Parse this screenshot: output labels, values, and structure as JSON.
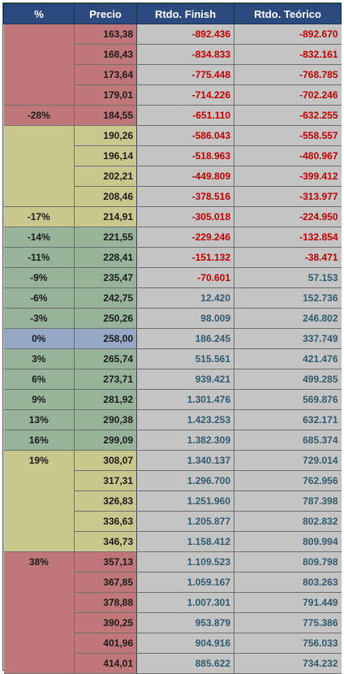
{
  "headers": [
    "%",
    "Precio",
    "Rtdo. Finish",
    "Rtdo. Teórico"
  ],
  "rows": [
    {
      "pct": "",
      "precio": "163,38",
      "finish": "-892.436",
      "teorico": "-892.670",
      "band": "red"
    },
    {
      "pct": "",
      "precio": "168,43",
      "finish": "-834.833",
      "teorico": "-832.161",
      "band": "red"
    },
    {
      "pct": "",
      "precio": "173,64",
      "finish": "-775.448",
      "teorico": "-768.785",
      "band": "red"
    },
    {
      "pct": "",
      "precio": "179,01",
      "finish": "-714.226",
      "teorico": "-702.246",
      "band": "red"
    },
    {
      "pct": "-28%",
      "precio": "184,55",
      "finish": "-651.110",
      "teorico": "-632.255",
      "band": "red"
    },
    {
      "pct": "",
      "precio": "190,26",
      "finish": "-586.043",
      "teorico": "-558.557",
      "band": "olive"
    },
    {
      "pct": "",
      "precio": "196,14",
      "finish": "-518.963",
      "teorico": "-480.967",
      "band": "olive"
    },
    {
      "pct": "",
      "precio": "202,21",
      "finish": "-449.809",
      "teorico": "-399.412",
      "band": "olive"
    },
    {
      "pct": "",
      "precio": "208,46",
      "finish": "-378.516",
      "teorico": "-313.977",
      "band": "olive"
    },
    {
      "pct": "-17%",
      "precio": "214,91",
      "finish": "-305.018",
      "teorico": "-224.950",
      "band": "olive"
    },
    {
      "pct": "-14%",
      "precio": "221,55",
      "finish": "-229.246",
      "teorico": "-132.854",
      "band": "green"
    },
    {
      "pct": "-11%",
      "precio": "228,41",
      "finish": "-151.132",
      "teorico": "-38.471",
      "band": "green"
    },
    {
      "pct": "-9%",
      "precio": "235,47",
      "finish": "-70.601",
      "teorico": "57.153",
      "band": "green"
    },
    {
      "pct": "-6%",
      "precio": "242,75",
      "finish": "12.420",
      "teorico": "152.736",
      "band": "green"
    },
    {
      "pct": "-3%",
      "precio": "250,26",
      "finish": "98.009",
      "teorico": "246.802",
      "band": "green"
    },
    {
      "pct": "0%",
      "precio": "258,00",
      "finish": "186.245",
      "teorico": "337.749",
      "band": "blue"
    },
    {
      "pct": "3%",
      "precio": "265,74",
      "finish": "515.561",
      "teorico": "421.476",
      "band": "green"
    },
    {
      "pct": "6%",
      "precio": "273,71",
      "finish": "939.421",
      "teorico": "499.285",
      "band": "green"
    },
    {
      "pct": "9%",
      "precio": "281,92",
      "finish": "1.301.476",
      "teorico": "569.876",
      "band": "green"
    },
    {
      "pct": "13%",
      "precio": "290,38",
      "finish": "1.423.253",
      "teorico": "632.171",
      "band": "green"
    },
    {
      "pct": "16%",
      "precio": "299,09",
      "finish": "1.382.309",
      "teorico": "685.374",
      "band": "green"
    },
    {
      "pct": "19%",
      "precio": "308,07",
      "finish": "1.340.137",
      "teorico": "729.014",
      "band": "olive"
    },
    {
      "pct": "",
      "precio": "317,31",
      "finish": "1.296.700",
      "teorico": "762.956",
      "band": "olive"
    },
    {
      "pct": "",
      "precio": "326,83",
      "finish": "1.251.960",
      "teorico": "787.398",
      "band": "olive"
    },
    {
      "pct": "",
      "precio": "336,63",
      "finish": "1.205.877",
      "teorico": "802.832",
      "band": "olive"
    },
    {
      "pct": "",
      "precio": "346,73",
      "finish": "1.158.412",
      "teorico": "809.994",
      "band": "olive"
    },
    {
      "pct": "38%",
      "precio": "357,13",
      "finish": "1.109.523",
      "teorico": "809.798",
      "band": "red"
    },
    {
      "pct": "",
      "precio": "367,85",
      "finish": "1.059.167",
      "teorico": "803.263",
      "band": "red"
    },
    {
      "pct": "",
      "precio": "378,88",
      "finish": "1.007.301",
      "teorico": "791.449",
      "band": "red"
    },
    {
      "pct": "",
      "precio": "390,25",
      "finish": "953.879",
      "teorico": "775.386",
      "band": "red"
    },
    {
      "pct": "",
      "precio": "401,96",
      "finish": "904.916",
      "teorico": "756.033",
      "band": "red"
    },
    {
      "pct": "",
      "precio": "414,01",
      "finish": "885.622",
      "teorico": "734.232",
      "band": "red"
    }
  ]
}
